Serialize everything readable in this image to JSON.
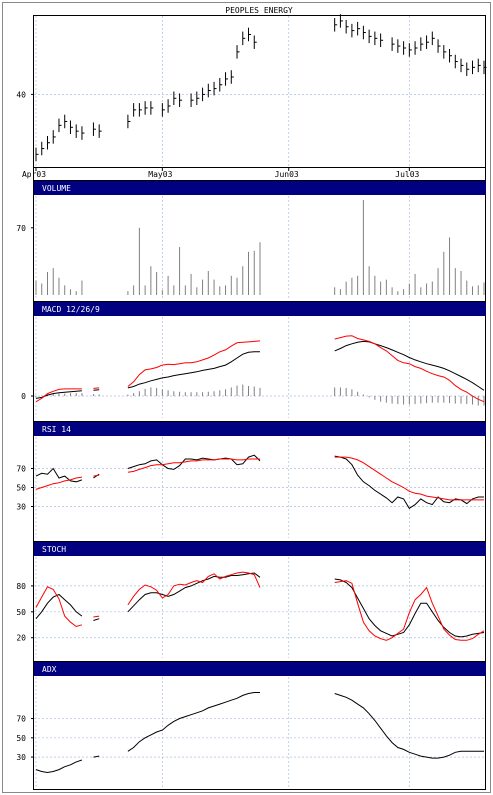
{
  "title": "PEOPLES ENERGY",
  "x_axis": {
    "ticks": [
      "Apr03",
      "May03",
      "Jun03",
      "Jul03"
    ]
  },
  "panels": {
    "price": {
      "label": "",
      "yticks": [
        "40"
      ]
    },
    "volume": {
      "label": "VOLUME",
      "yticks": [
        "70"
      ]
    },
    "macd": {
      "label": "MACD 12/26/9",
      "yticks": [
        "0"
      ]
    },
    "rsi": {
      "label": "RSI 14",
      "yticks": [
        "70",
        "50",
        "30"
      ]
    },
    "stoch": {
      "label": "STOCH",
      "yticks": [
        "80",
        "50",
        "20"
      ]
    },
    "adx": {
      "label": "ADX",
      "yticks": [
        "70",
        "50",
        "30"
      ]
    }
  },
  "colors": {
    "band": "#000080",
    "signal": "#ff0000",
    "line": "#000000",
    "grid": "#a8c0e0"
  },
  "chart_data": [
    {
      "type": "line",
      "title": "PEOPLES ENERGY",
      "ylim": [
        36.4,
        43.9
      ],
      "yticks": [
        40
      ],
      "x_ticks": {
        "Apr03": 0,
        "May03": 22,
        "Jun03": 44,
        "Jul03": 65
      },
      "series": [
        {
          "values": [
            36.9,
            37.2,
            37.5,
            37.8,
            38.4,
            38.6,
            38.3,
            38.1,
            38.0,
            null,
            38.2,
            38.1,
            null,
            null,
            null,
            null,
            38.6,
            39.2,
            39.2,
            39.3,
            39.3,
            null,
            39.2,
            39.4,
            39.8,
            39.7,
            null,
            39.7,
            39.8,
            40.0,
            40.2,
            40.3,
            40.5,
            40.8,
            40.9,
            42.2,
            42.9,
            43.1,
            42.7,
            null,
            null,
            null,
            null,
            null,
            null,
            null,
            null,
            null,
            null,
            null,
            null,
            null,
            43.6,
            43.8,
            43.5,
            43.3,
            43.4,
            43.2,
            43.0,
            42.9,
            42.8,
            null,
            42.6,
            42.5,
            42.4,
            42.3,
            42.4,
            42.6,
            42.7,
            42.9,
            42.5,
            42.2,
            42.0,
            41.7,
            41.5,
            41.3,
            41.4,
            41.5,
            41.4
          ]
        }
      ]
    },
    {
      "type": "bar",
      "title": "VOLUME",
      "ylim": [
        0,
        100
      ],
      "yticks": [
        70
      ],
      "values": [
        15,
        12,
        24,
        28,
        18,
        10,
        6,
        4,
        15,
        null,
        null,
        null,
        null,
        null,
        null,
        null,
        4,
        10,
        70,
        10,
        30,
        24,
        5,
        20,
        10,
        50,
        10,
        22,
        8,
        16,
        25,
        16,
        9,
        10,
        20,
        18,
        30,
        45,
        46,
        55,
        null,
        null,
        null,
        null,
        null,
        null,
        null,
        null,
        null,
        null,
        null,
        null,
        8,
        6,
        14,
        18,
        20,
        99,
        30,
        20,
        14,
        16,
        8,
        4,
        6,
        12,
        22,
        8,
        12,
        14,
        28,
        45,
        60,
        28,
        25,
        15,
        9,
        10,
        13
      ]
    },
    {
      "type": "line",
      "title": "MACD 12/26/9",
      "ylim": [
        -0.4,
        1.6
      ],
      "yticks": [
        0
      ],
      "series": [
        {
          "values": [
            -0.05,
            -0.03,
            0.02,
            0.05,
            0.07,
            0.08,
            0.09,
            0.1,
            0.11,
            null,
            0.12,
            0.13,
            null,
            null,
            null,
            null,
            0.17,
            0.2,
            0.25,
            0.28,
            0.32,
            0.35,
            0.38,
            0.4,
            0.43,
            0.45,
            0.47,
            0.49,
            0.51,
            0.54,
            0.56,
            0.58,
            0.62,
            0.65,
            0.72,
            0.8,
            0.88,
            0.92,
            0.93,
            0.93,
            null,
            null,
            null,
            null,
            null,
            null,
            null,
            null,
            null,
            null,
            null,
            null,
            0.95,
            1.0,
            1.06,
            1.1,
            1.13,
            1.15,
            1.14,
            1.1,
            1.06,
            1.02,
            0.97,
            0.92,
            0.87,
            0.81,
            0.76,
            0.72,
            0.68,
            0.65,
            0.62,
            0.58,
            0.53,
            0.47,
            0.41,
            0.35,
            0.28,
            0.2,
            0.12
          ]
        },
        {
          "name": "signal",
          "values": [
            -0.12,
            -0.05,
            0.05,
            0.1,
            0.14,
            0.15,
            0.15,
            0.15,
            0.15,
            null,
            0.16,
            0.17,
            null,
            null,
            null,
            null,
            0.2,
            0.3,
            0.45,
            0.55,
            0.57,
            0.6,
            0.65,
            0.67,
            0.66,
            0.68,
            0.7,
            0.7,
            0.72,
            0.76,
            0.8,
            0.86,
            0.93,
            0.97,
            1.05,
            1.12,
            1.13,
            1.14,
            1.15,
            1.16,
            null,
            null,
            null,
            null,
            null,
            null,
            null,
            null,
            null,
            null,
            null,
            null,
            1.2,
            1.23,
            1.26,
            1.27,
            1.21,
            1.18,
            1.15,
            1.1,
            1.02,
            0.95,
            0.85,
            0.75,
            0.7,
            0.68,
            0.62,
            0.58,
            0.52,
            0.47,
            0.43,
            0.4,
            0.33,
            0.22,
            0.14,
            0.08,
            0.0,
            -0.07,
            -0.12
          ]
        },
        {
          "name": "histogram",
          "kind": "bar",
          "values": [
            -0.02,
            0.01,
            0.03,
            0.04,
            0.05,
            0.05,
            0.06,
            0.06,
            0.06,
            null,
            0.04,
            0.03,
            null,
            null,
            null,
            null,
            0.03,
            0.06,
            0.1,
            0.15,
            0.18,
            0.17,
            0.14,
            0.12,
            0.1,
            0.09,
            0.08,
            0.08,
            0.08,
            0.08,
            0.09,
            0.1,
            0.12,
            0.14,
            0.18,
            0.22,
            0.24,
            0.21,
            0.2,
            0.17,
            null,
            null,
            null,
            null,
            null,
            null,
            null,
            null,
            null,
            null,
            null,
            null,
            0.18,
            0.18,
            0.17,
            0.14,
            0.09,
            0.03,
            -0.03,
            -0.08,
            -0.12,
            -0.14,
            -0.16,
            -0.17,
            -0.18,
            -0.18,
            -0.17,
            -0.16,
            -0.15,
            -0.14,
            -0.14,
            -0.14,
            -0.15,
            -0.16,
            -0.16,
            -0.17,
            -0.18,
            -0.2,
            -0.2
          ]
        }
      ]
    },
    {
      "type": "line",
      "title": "RSI 14",
      "ylim": [
        0,
        100
      ],
      "yticks": [
        70,
        50,
        30
      ],
      "series": [
        {
          "values": [
            62,
            65,
            64,
            70,
            60,
            62,
            57,
            56,
            58,
            null,
            60,
            64,
            null,
            null,
            null,
            null,
            70,
            72,
            74,
            75,
            78,
            79,
            74,
            70,
            69,
            73,
            80,
            80,
            79,
            81,
            80,
            79,
            80,
            81,
            80,
            74,
            75,
            82,
            84,
            78,
            null,
            null,
            null,
            null,
            null,
            null,
            null,
            null,
            null,
            null,
            null,
            null,
            83,
            82,
            80,
            74,
            63,
            56,
            52,
            47,
            43,
            39,
            34,
            40,
            38,
            28,
            32,
            38,
            34,
            32,
            40,
            35,
            34,
            38,
            37,
            33,
            38,
            40,
            40
          ]
        },
        {
          "name": "signal",
          "values": [
            48,
            50,
            52,
            54,
            55,
            57,
            58,
            60,
            61,
            null,
            62,
            63,
            null,
            null,
            null,
            null,
            66,
            67,
            69,
            71,
            73,
            74,
            74,
            75,
            76,
            76,
            77,
            78,
            78,
            79,
            79,
            79,
            80,
            80,
            80,
            79,
            79,
            80,
            80,
            80,
            null,
            null,
            null,
            null,
            null,
            null,
            null,
            null,
            null,
            null,
            null,
            null,
            82,
            82,
            82,
            81,
            79,
            76,
            72,
            68,
            64,
            60,
            56,
            53,
            50,
            46,
            44,
            43,
            41,
            40,
            39,
            38,
            37,
            37,
            37,
            37,
            37,
            37,
            37
          ]
        }
      ]
    },
    {
      "type": "line",
      "title": "STOCH",
      "ylim": [
        0,
        110
      ],
      "yticks": [
        80,
        50,
        20
      ],
      "series": [
        {
          "values": [
            42,
            50,
            60,
            67,
            70,
            64,
            58,
            50,
            45,
            null,
            40,
            42,
            null,
            null,
            null,
            null,
            50,
            57,
            64,
            70,
            72,
            72,
            70,
            68,
            70,
            74,
            78,
            80,
            83,
            86,
            88,
            91,
            90,
            90,
            92,
            92,
            93,
            94,
            95,
            90,
            null,
            null,
            null,
            null,
            null,
            null,
            null,
            null,
            null,
            null,
            null,
            null,
            88,
            87,
            84,
            78,
            66,
            54,
            42,
            34,
            28,
            25,
            22,
            24,
            26,
            35,
            48,
            60,
            60,
            50,
            40,
            32,
            26,
            22,
            21,
            22,
            24,
            25,
            26
          ]
        },
        {
          "name": "signal",
          "values": [
            55,
            67,
            79,
            76,
            65,
            45,
            38,
            33,
            35,
            null,
            44,
            45,
            null,
            null,
            null,
            null,
            58,
            68,
            76,
            81,
            79,
            75,
            66,
            70,
            80,
            82,
            81,
            84,
            86,
            84,
            91,
            94,
            88,
            91,
            93,
            95,
            96,
            95,
            93,
            78,
            null,
            null,
            null,
            null,
            null,
            null,
            null,
            null,
            null,
            null,
            null,
            null,
            84,
            85,
            86,
            83,
            60,
            38,
            28,
            22,
            19,
            17,
            20,
            25,
            30,
            49,
            64,
            70,
            78,
            60,
            45,
            30,
            23,
            18,
            17,
            17,
            19,
            24,
            28
          ]
        }
      ]
    },
    {
      "type": "line",
      "title": "ADX",
      "ylim": [
        0,
        110
      ],
      "yticks": [
        70,
        50,
        30
      ],
      "series": [
        {
          "values": [
            17,
            15,
            14,
            15,
            17,
            20,
            22,
            25,
            27,
            null,
            30,
            31,
            null,
            null,
            null,
            null,
            36,
            40,
            46,
            50,
            53,
            56,
            58,
            63,
            67,
            70,
            72,
            74,
            76,
            78,
            81,
            83,
            85,
            87,
            89,
            91,
            94,
            96,
            97,
            97,
            null,
            null,
            null,
            null,
            null,
            null,
            null,
            null,
            null,
            null,
            null,
            null,
            96,
            94,
            92,
            89,
            85,
            81,
            75,
            68,
            60,
            52,
            45,
            40,
            38,
            35,
            33,
            31,
            30,
            29,
            29,
            30,
            32,
            35,
            36,
            36,
            36,
            36,
            36
          ]
        }
      ]
    }
  ]
}
